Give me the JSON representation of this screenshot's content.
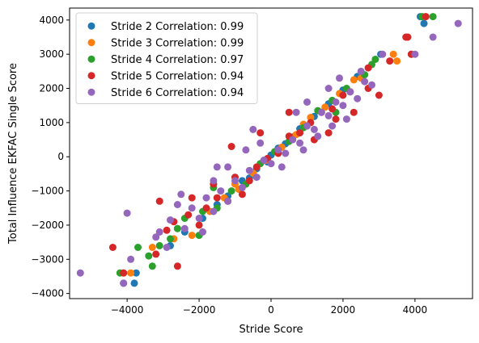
{
  "chart_data": {
    "type": "scatter",
    "title": "",
    "xlabel": "Stride Score",
    "ylabel": "Total Influence EKFAC Single Score",
    "xlim": [
      -5600,
      5600
    ],
    "ylim": [
      -4150,
      4350
    ],
    "xticks": [
      -4000,
      -2000,
      0,
      2000,
      4000
    ],
    "yticks": [
      -4000,
      -3000,
      -2000,
      -1000,
      0,
      1000,
      2000,
      3000,
      4000
    ],
    "grid": false,
    "legend_position": "upper-left",
    "series": [
      {
        "name": "Stride 2 Correlation: 0.99",
        "color": "#1f77b4",
        "points": [
          [
            4150,
            4100
          ],
          [
            4250,
            3900
          ],
          [
            3050,
            3000
          ],
          [
            -3800,
            -3700
          ],
          [
            -3750,
            -3400
          ],
          [
            -4100,
            -3700
          ],
          [
            -2400,
            -2200
          ],
          [
            -2800,
            -2600
          ],
          [
            -1900,
            -1800
          ],
          [
            -1500,
            -1400
          ],
          [
            -1200,
            -1150
          ],
          [
            -800,
            -700
          ],
          [
            -400,
            -350
          ],
          [
            0,
            50
          ],
          [
            400,
            380
          ],
          [
            800,
            820
          ],
          [
            1200,
            1180
          ],
          [
            1600,
            1550
          ],
          [
            2000,
            1950
          ],
          [
            2400,
            2350
          ],
          [
            -600,
            -620
          ],
          [
            600,
            580
          ],
          [
            -100,
            -150
          ],
          [
            200,
            250
          ]
        ]
      },
      {
        "name": "Stride 3 Correlation: 0.99",
        "color": "#ff7f0e",
        "points": [
          [
            3400,
            3000
          ],
          [
            3500,
            2800
          ],
          [
            4300,
            4100
          ],
          [
            -3900,
            -3400
          ],
          [
            -4100,
            -3400
          ],
          [
            -3300,
            -2650
          ],
          [
            -2600,
            -2100
          ],
          [
            -2700,
            -2400
          ],
          [
            -2200,
            -2300
          ],
          [
            -1700,
            -1600
          ],
          [
            -1300,
            -1200
          ],
          [
            -900,
            -950
          ],
          [
            -500,
            -480
          ],
          [
            -150,
            -100
          ],
          [
            300,
            280
          ],
          [
            700,
            650
          ],
          [
            1100,
            1150
          ],
          [
            1500,
            1450
          ],
          [
            1900,
            1850
          ],
          [
            2300,
            2250
          ],
          [
            2500,
            2300
          ],
          [
            -1000,
            -800
          ],
          [
            900,
            950
          ]
        ]
      },
      {
        "name": "Stride 4 Correlation: 0.97",
        "color": "#2ca02c",
        "points": [
          [
            4200,
            4100
          ],
          [
            2800,
            2700
          ],
          [
            2900,
            2850
          ],
          [
            3900,
            3000
          ],
          [
            4500,
            4100
          ],
          [
            -4200,
            -3400
          ],
          [
            -3700,
            -2650
          ],
          [
            -3100,
            -2600
          ],
          [
            -3400,
            -2900
          ],
          [
            -3300,
            -3200
          ],
          [
            -2600,
            -2100
          ],
          [
            -2800,
            -2400
          ],
          [
            -2400,
            -1800
          ],
          [
            -1900,
            -1600
          ],
          [
            -1500,
            -1500
          ],
          [
            -1100,
            -1000
          ],
          [
            -700,
            -800
          ],
          [
            -300,
            -200
          ],
          [
            100,
            150
          ],
          [
            500,
            450
          ],
          [
            900,
            850
          ],
          [
            1300,
            1350
          ],
          [
            1700,
            1650
          ],
          [
            2100,
            2000
          ],
          [
            2600,
            2400
          ],
          [
            -2000,
            -2300
          ],
          [
            1800,
            1300
          ],
          [
            -1600,
            -900
          ]
        ]
      },
      {
        "name": "Stride 5 Correlation: 0.94",
        "color": "#d62728",
        "points": [
          [
            4300,
            4100
          ],
          [
            3900,
            3000
          ],
          [
            2700,
            2600
          ],
          [
            3300,
            2800
          ],
          [
            3750,
            3500
          ],
          [
            3800,
            3500
          ],
          [
            2200,
            1900
          ],
          [
            2700,
            2000
          ],
          [
            3000,
            1800
          ],
          [
            -4400,
            -2650
          ],
          [
            -4100,
            -3400
          ],
          [
            -3200,
            -2850
          ],
          [
            -2600,
            -3200
          ],
          [
            -2900,
            -2150
          ],
          [
            -2700,
            -1900
          ],
          [
            -3100,
            -1300
          ],
          [
            -2300,
            -1700
          ],
          [
            -2000,
            -2000
          ],
          [
            -1800,
            -1500
          ],
          [
            -1500,
            -1200
          ],
          [
            -1200,
            -1300
          ],
          [
            -1600,
            -800
          ],
          [
            -1000,
            -600
          ],
          [
            -600,
            -700
          ],
          [
            -400,
            -300
          ],
          [
            -100,
            -50
          ],
          [
            200,
            100
          ],
          [
            500,
            600
          ],
          [
            800,
            700
          ],
          [
            1100,
            1000
          ],
          [
            1400,
            1300
          ],
          [
            1700,
            1400
          ],
          [
            2000,
            1800
          ],
          [
            1600,
            700
          ],
          [
            1800,
            1100
          ],
          [
            -1100,
            300
          ],
          [
            -300,
            700
          ],
          [
            500,
            1300
          ],
          [
            2300,
            1300
          ],
          [
            1200,
            500
          ],
          [
            -800,
            -1100
          ],
          [
            -2200,
            -1200
          ]
        ]
      },
      {
        "name": "Stride 6 Correlation: 0.94",
        "color": "#9467bd",
        "points": [
          [
            5200,
            3900
          ],
          [
            4500,
            3500
          ],
          [
            4000,
            3000
          ],
          [
            3100,
            3000
          ],
          [
            -5300,
            -3400
          ],
          [
            -4100,
            -3700
          ],
          [
            -3900,
            -3000
          ],
          [
            -4000,
            -1650
          ],
          [
            -3200,
            -2350
          ],
          [
            -2900,
            -2650
          ],
          [
            -3100,
            -2200
          ],
          [
            -2800,
            -1850
          ],
          [
            -2400,
            -2100
          ],
          [
            -2200,
            -1500
          ],
          [
            -2000,
            -1800
          ],
          [
            -1800,
            -1200
          ],
          [
            -1600,
            -1600
          ],
          [
            -1400,
            -1000
          ],
          [
            -1200,
            -1300
          ],
          [
            -1000,
            -700
          ],
          [
            -800,
            -900
          ],
          [
            -600,
            -400
          ],
          [
            -400,
            -600
          ],
          [
            -200,
            -100
          ],
          [
            0,
            -200
          ],
          [
            200,
            200
          ],
          [
            400,
            100
          ],
          [
            600,
            500
          ],
          [
            800,
            400
          ],
          [
            1000,
            900
          ],
          [
            1200,
            800
          ],
          [
            1400,
            1300
          ],
          [
            1600,
            1200
          ],
          [
            1800,
            1600
          ],
          [
            2000,
            1500
          ],
          [
            2200,
            1900
          ],
          [
            2400,
            1700
          ],
          [
            2600,
            2200
          ],
          [
            2800,
            2100
          ],
          [
            1600,
            2000
          ],
          [
            1900,
            2300
          ],
          [
            2500,
            2500
          ],
          [
            1000,
            1600
          ],
          [
            700,
            1300
          ],
          [
            -500,
            800
          ],
          [
            -1200,
            -300
          ],
          [
            -1600,
            -700
          ],
          [
            -700,
            200
          ],
          [
            900,
            200
          ],
          [
            1300,
            600
          ],
          [
            -2600,
            -1400
          ],
          [
            -1900,
            -2200
          ],
          [
            -2500,
            -1100
          ],
          [
            1700,
            900
          ],
          [
            300,
            -300
          ],
          [
            -300,
            400
          ],
          [
            2100,
            1100
          ],
          [
            -1500,
            -300
          ]
        ]
      }
    ]
  }
}
